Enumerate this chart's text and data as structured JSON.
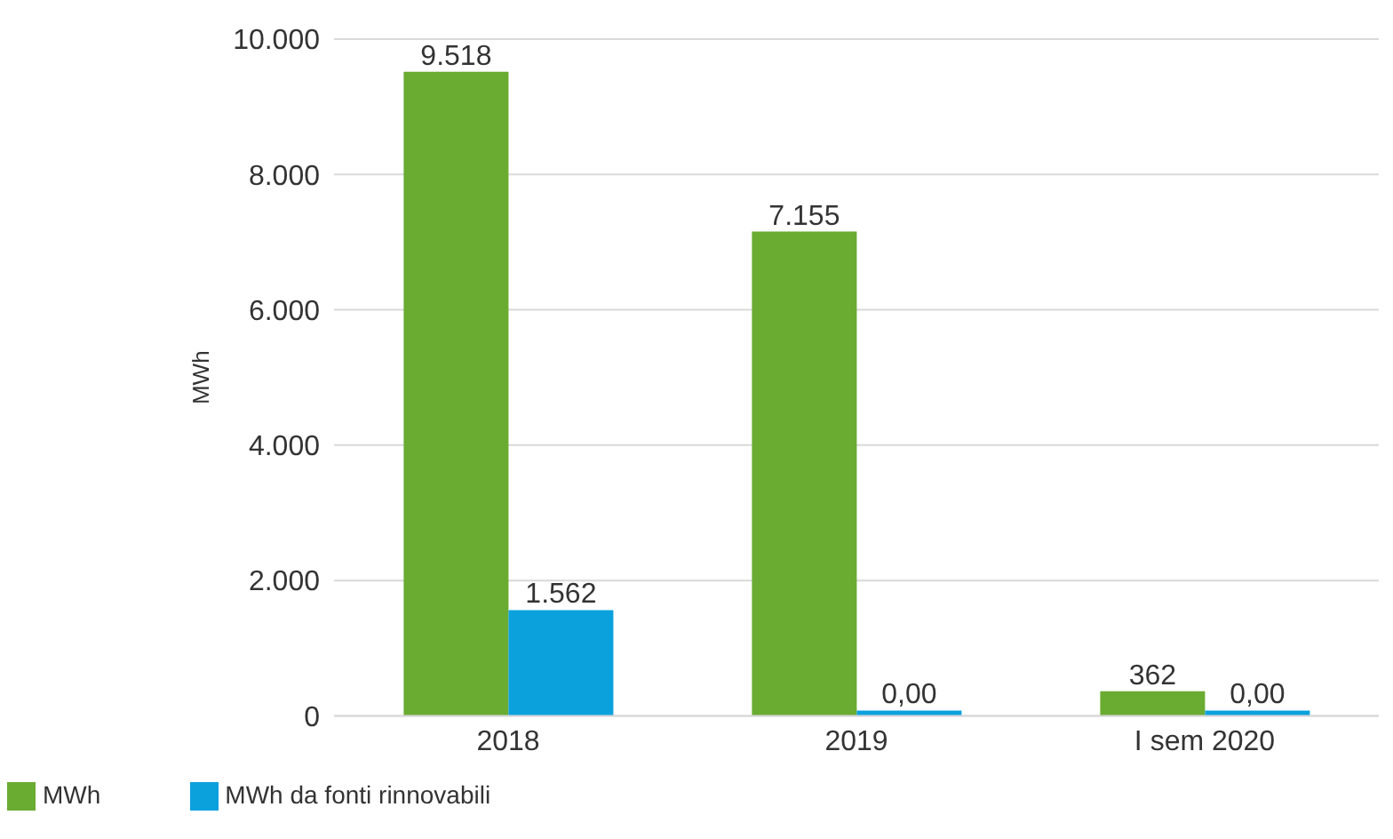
{
  "chart_data": {
    "type": "bar",
    "ylabel": "MWh",
    "categories": [
      "2018",
      "2019",
      "I sem 2020"
    ],
    "series": [
      {
        "name": "MWh",
        "color": "#6aab32",
        "values": [
          9518,
          7155,
          362
        ],
        "value_labels": [
          "9.518",
          "7.155",
          "362"
        ]
      },
      {
        "name": "MWh da fonti rinnovabili",
        "color": "#0ba1dd",
        "values": [
          1562,
          0,
          0
        ],
        "value_labels": [
          "1.562",
          "0,00",
          "0,00"
        ]
      }
    ],
    "ylim": [
      0,
      10000
    ],
    "yticks": [
      {
        "value": 0,
        "label": "0"
      },
      {
        "value": 2000,
        "label": "2.000"
      },
      {
        "value": 4000,
        "label": "4.000"
      },
      {
        "value": 6000,
        "label": "6.000"
      },
      {
        "value": 8000,
        "label": "8.000"
      },
      {
        "value": 10000,
        "label": "10.000"
      }
    ],
    "grid": "y",
    "legend": "bottom left"
  }
}
